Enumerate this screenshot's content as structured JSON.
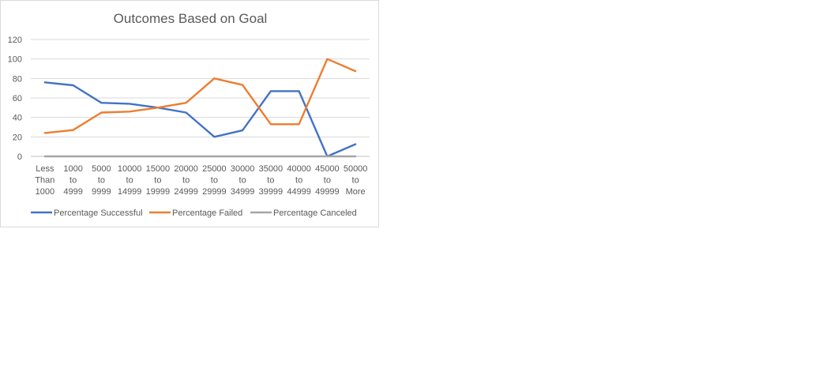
{
  "chart_data": {
    "type": "line",
    "title": "Outcomes Based on Goal",
    "xlabel": "",
    "ylabel": "",
    "ylim": [
      0,
      120
    ],
    "yticks": [
      0,
      20,
      40,
      60,
      80,
      100,
      120
    ],
    "grid": true,
    "legend_position": "bottom",
    "categories": [
      [
        "Less",
        "Than",
        "1000"
      ],
      [
        "1000",
        "to",
        "4999"
      ],
      [
        "5000",
        "to",
        "9999"
      ],
      [
        "10000",
        "to",
        "14999"
      ],
      [
        "15000",
        "to",
        "19999"
      ],
      [
        "20000",
        "to",
        "24999"
      ],
      [
        "25000",
        "to",
        "29999"
      ],
      [
        "30000",
        "to",
        "34999"
      ],
      [
        "35000",
        "to",
        "39999"
      ],
      [
        "40000",
        "to",
        "44999"
      ],
      [
        "45000",
        "to",
        "49999"
      ],
      [
        "50000",
        "to",
        "More"
      ]
    ],
    "series": [
      {
        "name": "Percentage Successful",
        "color": "#4472c4",
        "values": [
          76,
          73,
          55,
          54,
          50,
          45,
          20,
          26.7,
          67,
          67,
          0,
          12.5
        ]
      },
      {
        "name": "Percentage Failed",
        "color": "#ed7d31",
        "values": [
          24,
          27,
          45,
          46,
          50,
          55,
          80,
          73.3,
          33,
          33,
          100,
          87.5
        ]
      },
      {
        "name": "Percentage Canceled",
        "color": "#a5a5a5",
        "values": [
          0,
          0,
          0,
          0,
          0,
          0,
          0,
          0,
          0,
          0,
          0,
          0
        ]
      }
    ]
  }
}
